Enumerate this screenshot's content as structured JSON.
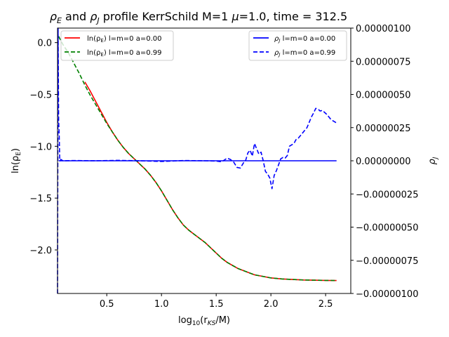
{
  "chart_data": {
    "type": "line",
    "title": "ρE and ρJ profile KerrSchild M=1 μ=1.0, time = 312.5",
    "title_parts": {
      "pre": "",
      "e_base": "ρ",
      "e_sub": "E",
      "and": " and ",
      "j_base": "ρ",
      "j_sub": "J",
      "rest": " profile KerrSchild M=1 ",
      "mu": "μ",
      "tail": "=1.0, time = 312.5"
    },
    "xlabel": "log10(rKS/M)",
    "xlabel_parts": {
      "pre": "log",
      "sub1": "10",
      "mid": "(r",
      "sub2": "KS",
      "post": "/M)"
    },
    "ylabel_left": "ln(ρE)",
    "ylabel_left_parts": {
      "pre": "ln(ρ",
      "sub": "E",
      "post": ")"
    },
    "ylabel_right": "ρJ",
    "ylabel_right_parts": {
      "base": "ρ",
      "sub": "J"
    },
    "xlim": [
      0.05,
      2.73
    ],
    "ylim_left": [
      -2.42,
      0.14
    ],
    "ylim_right": [
      -1e-06,
      1e-06
    ],
    "x_ticks": [
      "0.5",
      "1.0",
      "1.5",
      "2.0",
      "2.5"
    ],
    "x_tick_values": [
      0.5,
      1.0,
      1.5,
      2.0,
      2.5
    ],
    "y_left_ticks": [
      "0.0",
      "−0.5",
      "−1.0",
      "−1.5",
      "−2.0"
    ],
    "y_left_tick_values": [
      0.0,
      -0.5,
      -1.0,
      -1.5,
      -2.0
    ],
    "y_right_ticks": [
      "0.00000100",
      "0.00000075",
      "0.00000050",
      "0.00000025",
      "0.00000000",
      "−0.00000025",
      "−0.00000050",
      "−0.00000075",
      "−0.00000100"
    ],
    "y_right_tick_values": [
      1e-06,
      7.5e-07,
      5e-07,
      2.5e-07,
      0.0,
      -2.5e-07,
      -5e-07,
      -7.5e-07,
      -1e-06
    ],
    "grid": false,
    "legend_left": {
      "placement": "upper-left",
      "entries": [
        {
          "label_pre": "ln(ρ",
          "label_sub": "E",
          "label_post": ") l=m=0 a=0.00",
          "color": "#ff0000",
          "dash": "solid"
        },
        {
          "label_pre": "ln(ρ",
          "label_sub": "E",
          "label_post": ") l=m=0 a=0.99",
          "color": "#008000",
          "dash": "dashed"
        }
      ]
    },
    "legend_right": {
      "placement": "upper-right",
      "entries": [
        {
          "label_pre": "ρ",
          "label_sub": "J",
          "label_post": " l=m=0 a=0.00",
          "color": "#0000ff",
          "dash": "solid"
        },
        {
          "label_pre": "ρ",
          "label_sub": "J",
          "label_post": " l=m=0 a=0.99",
          "color": "#0000ff",
          "dash": "dashed"
        }
      ]
    },
    "series": [
      {
        "name": "ln(ρE) l=m=0 a=0.00",
        "axis": "left",
        "color": "#ff0000",
        "dash": "solid",
        "x": [
          0.3,
          0.35,
          0.4,
          0.45,
          0.5,
          0.55,
          0.6,
          0.65,
          0.7,
          0.75,
          0.8,
          0.85,
          0.9,
          0.95,
          1.0,
          1.05,
          1.1,
          1.15,
          1.2,
          1.25,
          1.3,
          1.35,
          1.4,
          1.45,
          1.5,
          1.55,
          1.6,
          1.65,
          1.7,
          1.75,
          1.8,
          1.85,
          1.9,
          1.95,
          2.0,
          2.05,
          2.1,
          2.2,
          2.3,
          2.4,
          2.5,
          2.6
        ],
        "y": [
          -0.38,
          -0.47,
          -0.57,
          -0.67,
          -0.77,
          -0.86,
          -0.94,
          -1.01,
          -1.07,
          -1.12,
          -1.17,
          -1.22,
          -1.28,
          -1.35,
          -1.43,
          -1.52,
          -1.61,
          -1.69,
          -1.76,
          -1.81,
          -1.85,
          -1.89,
          -1.93,
          -1.98,
          -2.03,
          -2.08,
          -2.12,
          -2.15,
          -2.18,
          -2.2,
          -2.22,
          -2.24,
          -2.25,
          -2.26,
          -2.27,
          -2.275,
          -2.28,
          -2.285,
          -2.29,
          -2.292,
          -2.294,
          -2.295
        ]
      },
      {
        "name": "ln(ρE) l=m=0 a=0.99",
        "axis": "left",
        "color": "#008000",
        "dash": "dashed",
        "x": [
          0.06,
          0.08,
          0.1,
          0.15,
          0.2,
          0.25,
          0.3,
          0.35,
          0.4,
          0.45,
          0.5,
          0.55,
          0.6,
          0.65,
          0.7,
          0.75,
          0.8,
          0.85,
          0.9,
          0.95,
          1.0,
          1.05,
          1.1,
          1.15,
          1.2,
          1.25,
          1.3,
          1.35,
          1.4,
          1.45,
          1.5,
          1.55,
          1.6,
          1.65,
          1.7,
          1.75,
          1.8,
          1.85,
          1.9,
          1.95,
          2.0,
          2.05,
          2.1,
          2.2,
          2.3,
          2.4,
          2.5,
          2.6
        ],
        "y": [
          0.06,
          0.02,
          -0.02,
          -0.1,
          -0.2,
          -0.3,
          -0.41,
          -0.51,
          -0.6,
          -0.69,
          -0.78,
          -0.86,
          -0.94,
          -1.01,
          -1.07,
          -1.12,
          -1.17,
          -1.22,
          -1.28,
          -1.35,
          -1.43,
          -1.52,
          -1.61,
          -1.69,
          -1.76,
          -1.81,
          -1.85,
          -1.89,
          -1.93,
          -1.98,
          -2.03,
          -2.08,
          -2.12,
          -2.15,
          -2.18,
          -2.2,
          -2.22,
          -2.24,
          -2.25,
          -2.26,
          -2.27,
          -2.275,
          -2.28,
          -2.285,
          -2.29,
          -2.292,
          -2.294,
          -2.295
        ]
      },
      {
        "name": "ρJ l=m=0 a=0.00",
        "axis": "right",
        "color": "#0000ff",
        "dash": "solid",
        "x": [
          0.06,
          2.6
        ],
        "y": [
          0.0,
          0.0
        ]
      },
      {
        "name": "ρJ l=m=0 a=0.99",
        "axis": "right",
        "color": "#0000ff",
        "dash": "dashed",
        "x": [
          0.05,
          0.055,
          0.06,
          0.065,
          0.07,
          0.075,
          0.08,
          0.1,
          0.2,
          0.4,
          0.6,
          0.8,
          1.0,
          1.2,
          1.4,
          1.5,
          1.55,
          1.6,
          1.63,
          1.66,
          1.69,
          1.72,
          1.75,
          1.77,
          1.79,
          1.81,
          1.83,
          1.85,
          1.87,
          1.89,
          1.91,
          1.93,
          1.95,
          1.97,
          1.99,
          2.01,
          2.03,
          2.05,
          2.07,
          2.09,
          2.11,
          2.13,
          2.15,
          2.17,
          2.19,
          2.21,
          2.23,
          2.25,
          2.27,
          2.29,
          2.31,
          2.33,
          2.35,
          2.37,
          2.39,
          2.41,
          2.43,
          2.45,
          2.47,
          2.49,
          2.51,
          2.53,
          2.55,
          2.57,
          2.59,
          2.6
        ],
        "y": [
          -1e-06,
          1e-06,
          3e-07,
          2e-07,
          1e-08,
          0.0,
          1e-08,
          0.0,
          2e-09,
          0.0,
          3e-09,
          0.0,
          -5e-09,
          2e-09,
          0.0,
          -2e-09,
          -8e-09,
          2e-08,
          1e-08,
          -1e-08,
          -5e-08,
          -5.5e-08,
          -1.5e-08,
          5e-09,
          6e-08,
          8e-08,
          3.5e-08,
          1.3e-07,
          9e-08,
          5e-08,
          6.5e-08,
          0.0,
          -8e-08,
          -1e-07,
          -1.3e-07,
          -2.1e-07,
          -1.1e-07,
          -7.5e-08,
          -3e-08,
          1.5e-08,
          2.5e-08,
          2e-08,
          4e-08,
          1.1e-07,
          1.2e-07,
          1.3e-07,
          1.6e-07,
          1.7e-07,
          1.9e-07,
          2.1e-07,
          2.3e-07,
          2.5e-07,
          2.9e-07,
          3.3e-07,
          3.6e-07,
          3.95e-07,
          3.9e-07,
          3.75e-07,
          3.8e-07,
          3.65e-07,
          3.5e-07,
          3.3e-07,
          3.1e-07,
          3e-07,
          2.9e-07,
          2.85e-07
        ]
      }
    ]
  }
}
